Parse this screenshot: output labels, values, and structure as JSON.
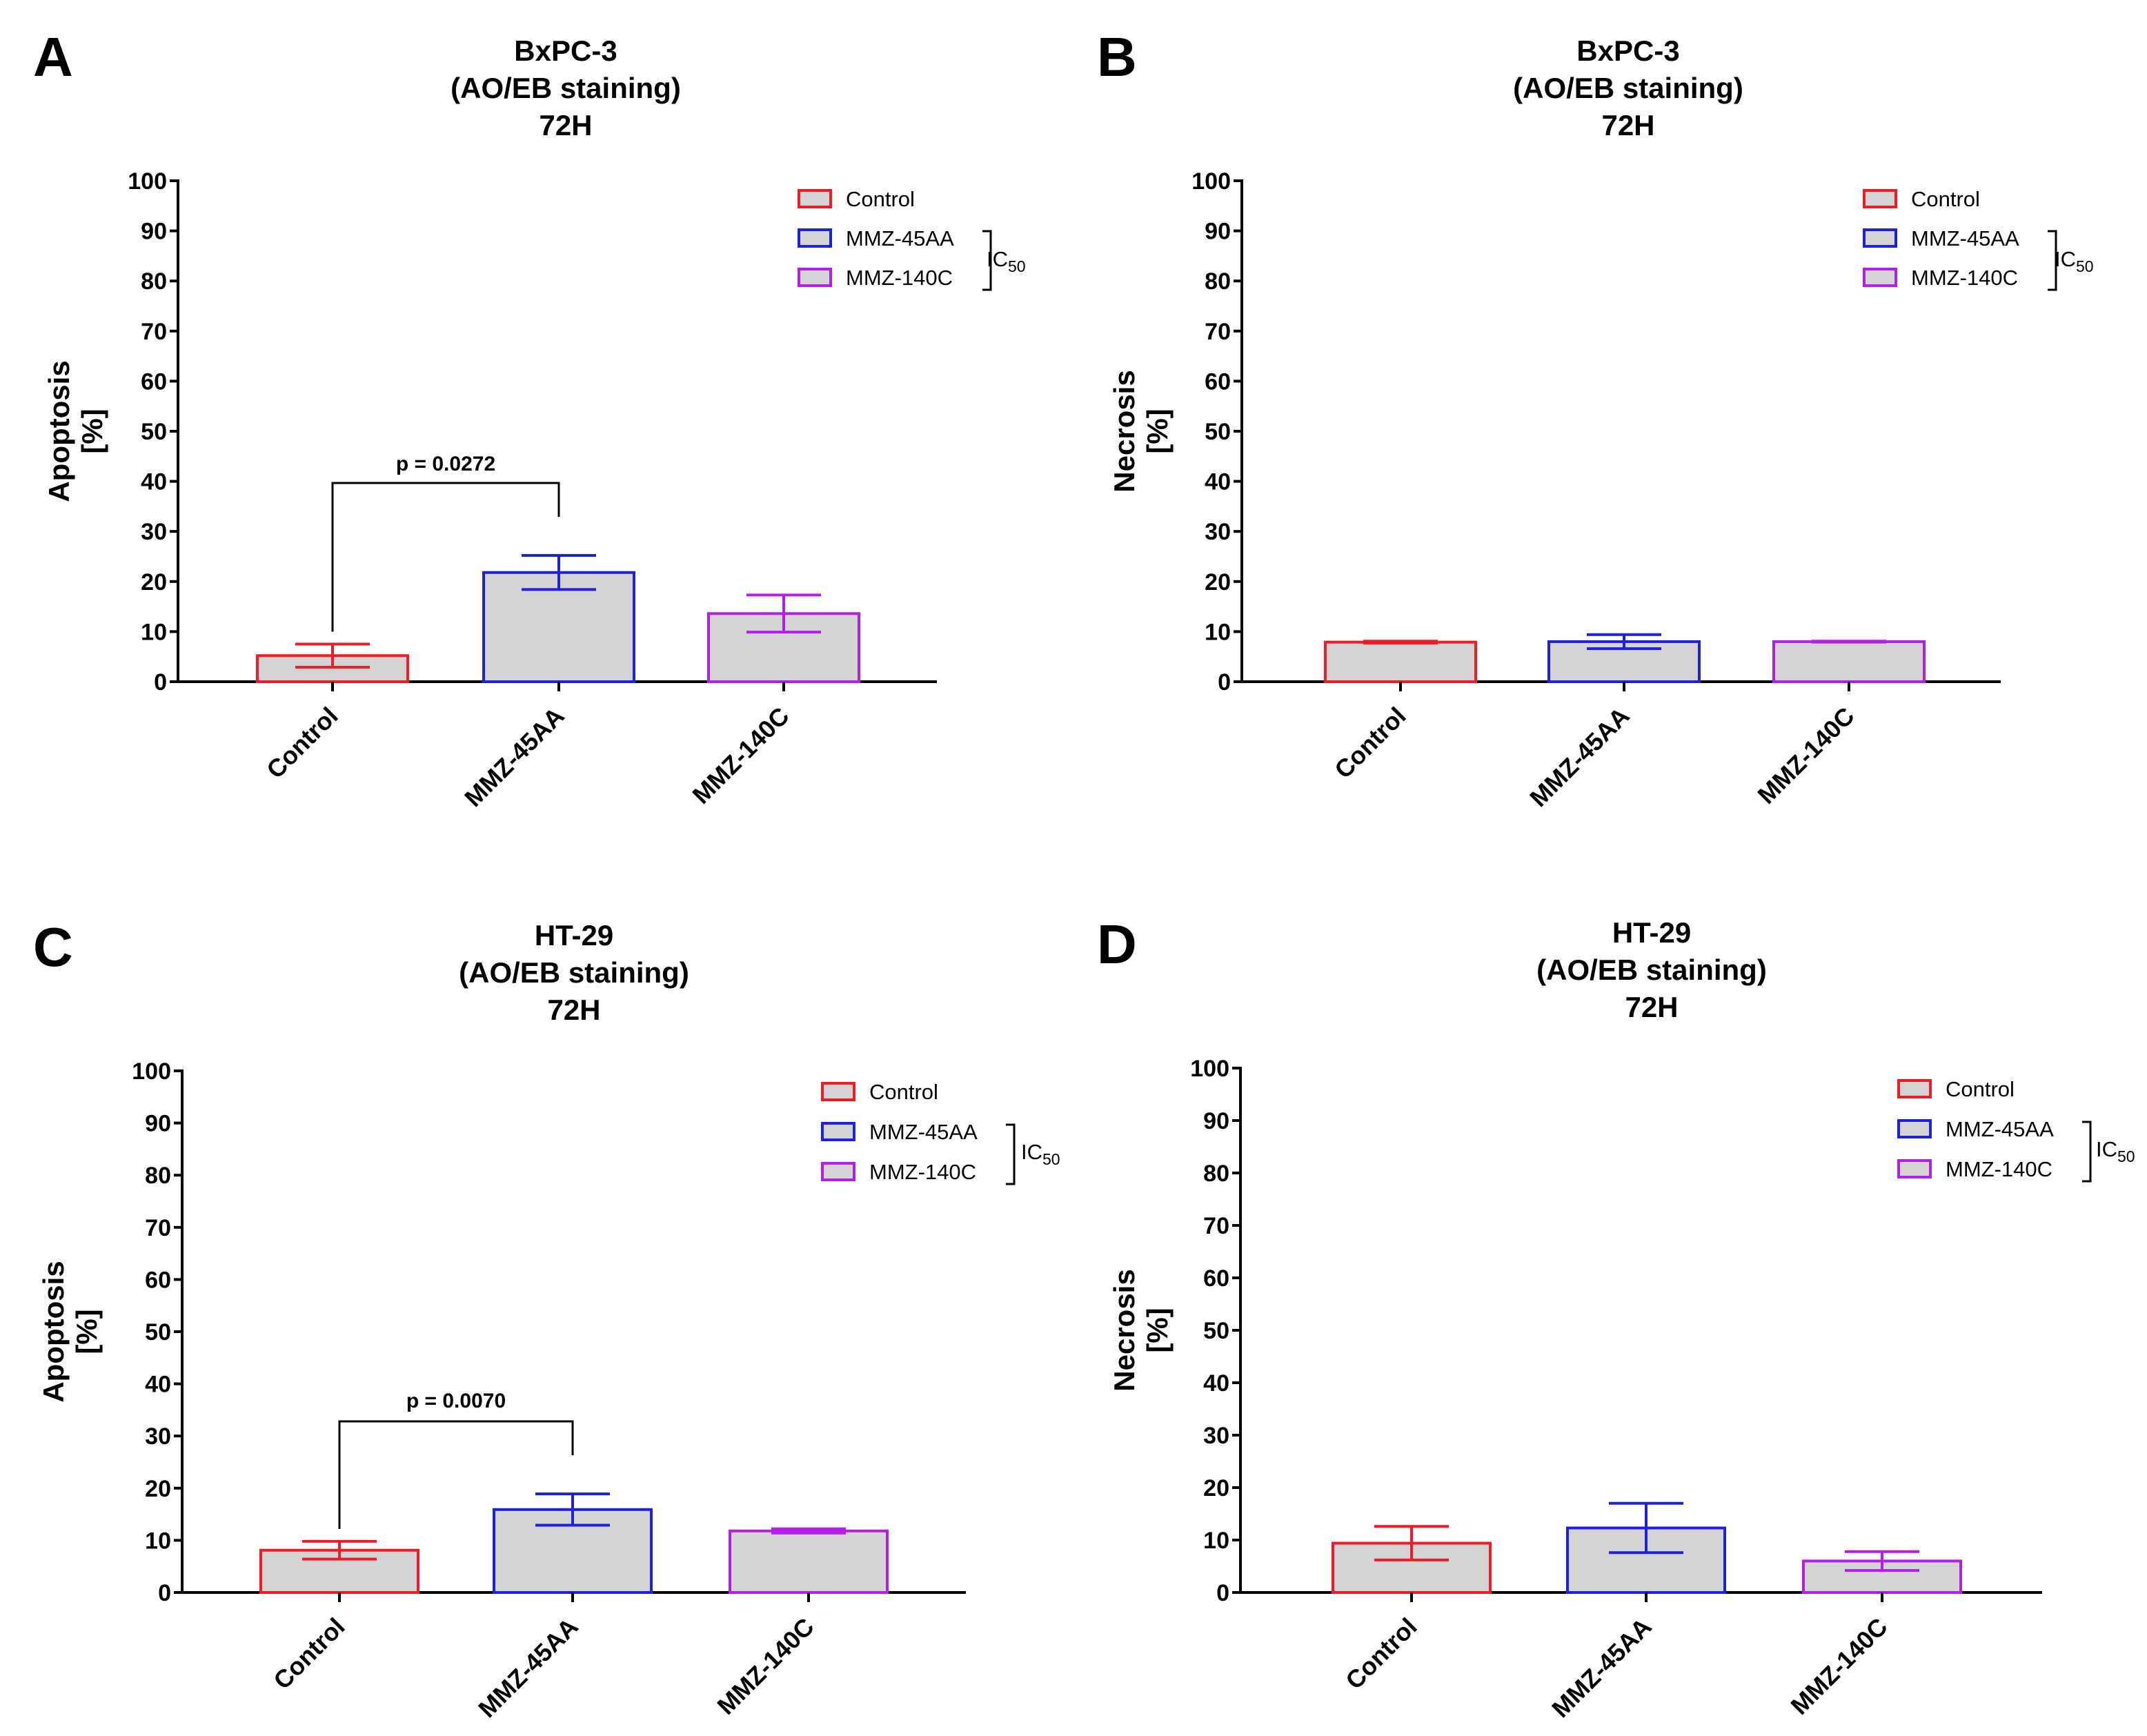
{
  "ic50_label": {
    "main": "IC",
    "sub": "50"
  },
  "colors": {
    "control": "#ee1c24",
    "mmz45aa": "#1f1fe0",
    "mmz140c": "#b31ee8",
    "bar_fill": "#d4d4d4",
    "axis": "#000000"
  },
  "chart_data": [
    {
      "panel": "A",
      "type": "bar",
      "title": [
        "BxPC-3",
        "(AO/EB staining)",
        "72H"
      ],
      "ylabel": [
        "Apoptosis",
        "[%]"
      ],
      "xlabel": "",
      "categories": [
        "Control",
        "MMZ-45AA",
        "MMZ-140C"
      ],
      "values": [
        5.2,
        21.8,
        13.6
      ],
      "errors": [
        2.3,
        3.4,
        3.7
      ],
      "ylim": [
        0,
        100
      ],
      "yticks": [
        "0",
        "10",
        "20",
        "30",
        "40",
        "50",
        "60",
        "70",
        "80",
        "90",
        "100"
      ],
      "legend": [
        "Control",
        "MMZ-45AA",
        "MMZ-140C"
      ],
      "significance": {
        "pair": [
          0,
          1
        ],
        "label": "p = 0.0272"
      }
    },
    {
      "panel": "B",
      "type": "bar",
      "title": [
        "BxPC-3",
        "(AO/EB staining)",
        "72H"
      ],
      "ylabel": [
        "Necrosis",
        "[%]"
      ],
      "xlabel": "",
      "categories": [
        "Control",
        "MMZ-45AA",
        "MMZ-140C"
      ],
      "values": [
        7.9,
        8.0,
        8.0
      ],
      "errors": [
        0.2,
        1.4,
        0.1
      ],
      "ylim": [
        0,
        100
      ],
      "yticks": [
        "0",
        "10",
        "20",
        "30",
        "40",
        "50",
        "60",
        "70",
        "80",
        "90",
        "100"
      ],
      "legend": [
        "Control",
        "MMZ-45AA",
        "MMZ-140C"
      ]
    },
    {
      "panel": "C",
      "type": "bar",
      "title": [
        "HT-29",
        "(AO/EB staining)",
        "72H"
      ],
      "ylabel": [
        "Apoptosis",
        "[%]"
      ],
      "xlabel": "",
      "categories": [
        "Control",
        "MMZ-45AA",
        "MMZ-140C"
      ],
      "values": [
        8.1,
        15.9,
        11.8
      ],
      "errors": [
        1.7,
        3.0,
        0.4
      ],
      "ylim": [
        0,
        100
      ],
      "yticks": [
        "0",
        "10",
        "20",
        "30",
        "40",
        "50",
        "60",
        "70",
        "80",
        "90",
        "100"
      ],
      "legend": [
        "Control",
        "MMZ-45AA",
        "MMZ-140C"
      ],
      "significance": {
        "pair": [
          0,
          1
        ],
        "label": "p = 0.0070"
      }
    },
    {
      "panel": "D",
      "type": "bar",
      "title": [
        "HT-29",
        "(AO/EB staining)",
        "72H"
      ],
      "ylabel": [
        "Necrosis",
        "[%]"
      ],
      "xlabel": "",
      "categories": [
        "Control",
        "MMZ-45AA",
        "MMZ-140C"
      ],
      "values": [
        9.4,
        12.3,
        6.0
      ],
      "errors": [
        3.2,
        4.7,
        1.8
      ],
      "ylim": [
        0,
        100
      ],
      "yticks": [
        "0",
        "10",
        "20",
        "30",
        "40",
        "50",
        "60",
        "70",
        "80",
        "90",
        "100"
      ],
      "legend": [
        "Control",
        "MMZ-45AA",
        "MMZ-140C"
      ]
    }
  ]
}
